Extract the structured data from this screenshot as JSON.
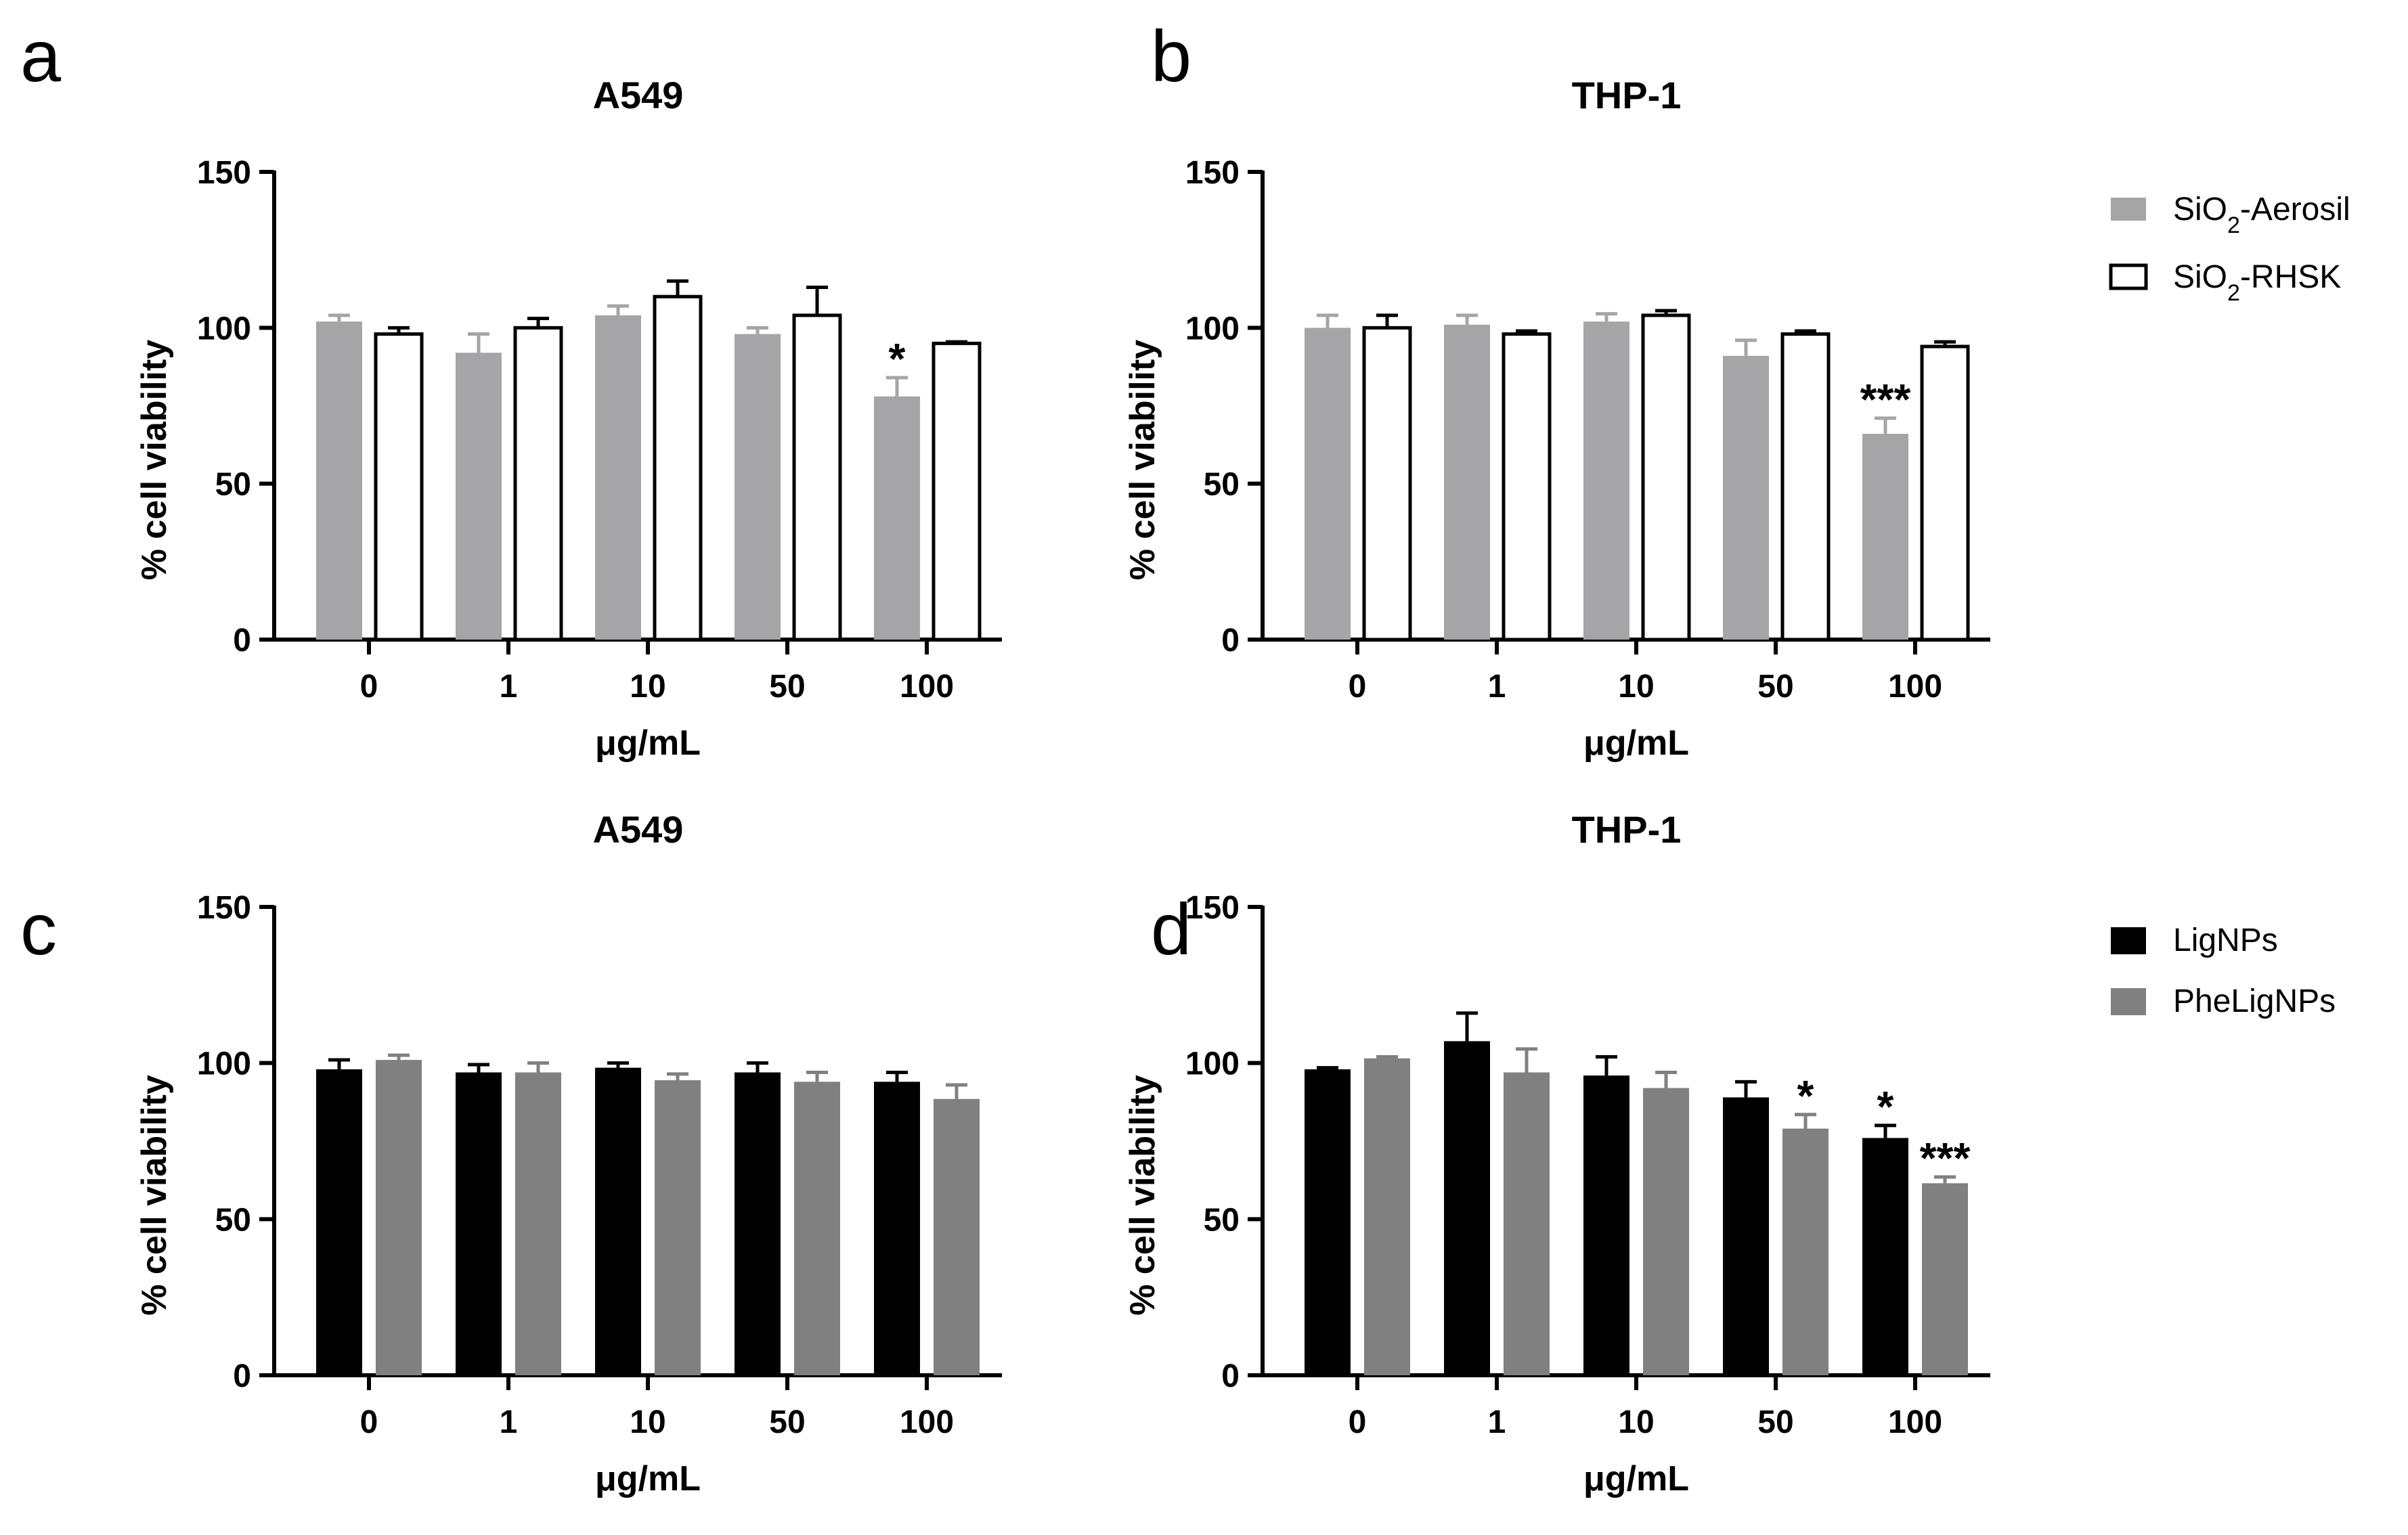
{
  "colors": {
    "aerosil": "#a5a5a8",
    "rhsk": "#ffffff",
    "lignps": "#000000",
    "pheligs": "#808080",
    "axis": "#000000"
  },
  "legends": {
    "top": [
      {
        "label_main": "SiO",
        "label_sub": "2",
        "label_rest": "-Aerosil",
        "color": "#a5a5a8"
      },
      {
        "label_main": "SiO",
        "label_sub": "2",
        "label_rest": "-RHSK",
        "color": "#ffffff"
      }
    ],
    "bottom": [
      {
        "label": "LigNPs",
        "color": "#000000"
      },
      {
        "label": "PheLigNPs",
        "color": "#808080"
      }
    ]
  },
  "chart_data": [
    {
      "panel": "a",
      "type": "bar",
      "title": "A549",
      "xlabel": "μg/mL",
      "ylabel": "% cell viability",
      "ylim": [
        0,
        150
      ],
      "yticks": [
        "0",
        "50",
        "100",
        "150"
      ],
      "categories": [
        "0",
        "1",
        "10",
        "50",
        "100"
      ],
      "series": [
        {
          "name": "SiO2-Aerosil",
          "values": [
            102,
            92,
            104,
            98,
            78
          ],
          "errors": [
            2,
            6,
            3,
            2,
            6
          ],
          "significance": [
            "",
            "",
            "",
            "",
            "*"
          ]
        },
        {
          "name": "SiO2-RHSK",
          "values": [
            98,
            100,
            110,
            104,
            95
          ],
          "errors": [
            2,
            3,
            5,
            9,
            0.5
          ],
          "significance": [
            "",
            "",
            "",
            "",
            ""
          ]
        }
      ]
    },
    {
      "panel": "b",
      "type": "bar",
      "title": "THP-1",
      "xlabel": "μg/mL",
      "ylabel": "% cell viability",
      "ylim": [
        0,
        150
      ],
      "yticks": [
        "0",
        "50",
        "100",
        "150"
      ],
      "categories": [
        "0",
        "1",
        "10",
        "50",
        "100"
      ],
      "series": [
        {
          "name": "SiO2-Aerosil",
          "values": [
            100,
            101,
            102,
            91,
            66
          ],
          "errors": [
            4,
            3,
            2.5,
            5,
            5
          ],
          "significance": [
            "",
            "",
            "",
            "",
            "***"
          ]
        },
        {
          "name": "SiO2-RHSK",
          "values": [
            100,
            98,
            104,
            98,
            94
          ],
          "errors": [
            4,
            1,
            1.5,
            1,
            1.5
          ],
          "significance": [
            "",
            "",
            "",
            "",
            ""
          ]
        }
      ]
    },
    {
      "panel": "c",
      "type": "bar",
      "title": "A549",
      "xlabel": "μg/mL",
      "ylabel": "% cell viability",
      "ylim": [
        0,
        150
      ],
      "yticks": [
        "0",
        "50",
        "100",
        "150"
      ],
      "categories": [
        "0",
        "1",
        "10",
        "50",
        "100"
      ],
      "series": [
        {
          "name": "LigNPs",
          "values": [
            98,
            97,
            98.5,
            97,
            94
          ],
          "errors": [
            3,
            2.5,
            1.5,
            3,
            3
          ],
          "significance": [
            "",
            "",
            "",
            "",
            ""
          ]
        },
        {
          "name": "PheLigNPs",
          "values": [
            101,
            97,
            94.5,
            94,
            88.5
          ],
          "errors": [
            1.5,
            3,
            2,
            3,
            4.5
          ],
          "significance": [
            "",
            "",
            "",
            "",
            ""
          ]
        }
      ]
    },
    {
      "panel": "d",
      "type": "bar",
      "title": "THP-1",
      "xlabel": "μg/mL",
      "ylabel": "% cell viability",
      "ylim": [
        0,
        150
      ],
      "yticks": [
        "0",
        "50",
        "100",
        "150"
      ],
      "categories": [
        "0",
        "1",
        "10",
        "50",
        "100"
      ],
      "series": [
        {
          "name": "LigNPs",
          "values": [
            98,
            107,
            96,
            89,
            76
          ],
          "errors": [
            0.5,
            9,
            6,
            5,
            4
          ],
          "significance": [
            "",
            "",
            "",
            "",
            "*"
          ]
        },
        {
          "name": "PheLigNPs",
          "values": [
            101.5,
            97,
            92,
            79,
            61.5
          ],
          "errors": [
            0.5,
            7.5,
            5,
            4.5,
            2
          ],
          "significance": [
            "",
            "",
            "",
            "*",
            "***"
          ]
        }
      ]
    }
  ]
}
